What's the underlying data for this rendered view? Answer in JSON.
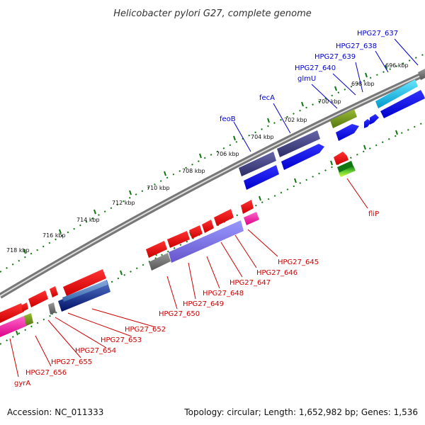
{
  "title": "Helicobacter pylori G27, complete genome",
  "footer": {
    "accession": "Accession: NC_011333",
    "summary": "Topology: circular; Length: 1,652,982 bp; Genes: 1,536"
  },
  "colors": {
    "forward_label": "#0000cc",
    "reverse_label": "#cc0000",
    "tick": "#117711",
    "backbone": "#888888"
  },
  "ticks": [
    "696 kbp",
    "698 kbp",
    "700 kbp",
    "702 kbp",
    "704 kbp",
    "706 kbp",
    "708 kbp",
    "710 kbp",
    "712 kbp",
    "714 kbp",
    "716 kbp",
    "718 kbp"
  ],
  "forward_genes": [
    "HPG27_637",
    "HPG27_638",
    "HPG27_639",
    "HPG27_640",
    "glmU",
    "fecA",
    "feoB"
  ],
  "reverse_genes": [
    "fliP",
    "HPG27_645",
    "HPG27_646",
    "HPG27_647",
    "HPG27_648",
    "HPG27_649",
    "HPG27_650",
    "HPG27_652",
    "HPG27_653",
    "HPG27_654",
    "HPG27_655",
    "HPG27_656",
    "gyrA"
  ]
}
